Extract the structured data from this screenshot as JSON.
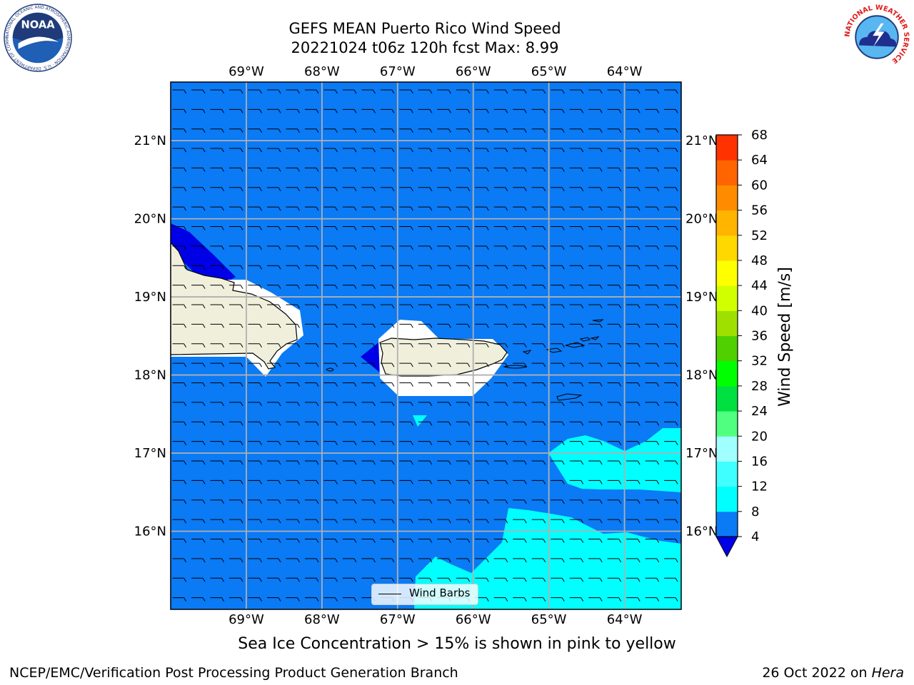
{
  "header": {
    "title_line1": "GEFS MEAN Puerto Rico Wind Speed",
    "title_line2": "20221024 t06z 120h fcst   Max: 8.99"
  },
  "logos": {
    "left": {
      "name": "noaa-logo",
      "text": "NOAA",
      "ring_text": "NATIONAL OCEANIC AND ATMOSPHERIC ADMINISTRATION · U.S. DEPARTMENT OF COMMERCE"
    },
    "right": {
      "name": "nws-logo",
      "ring_text": "NATIONAL WEATHER SERVICE"
    }
  },
  "map": {
    "lon_range": [
      -70.0,
      -63.25
    ],
    "lat_range": [
      15.0,
      21.75
    ],
    "lon_ticks": [
      {
        "value": -69,
        "label": "69°W"
      },
      {
        "value": -68,
        "label": "68°W"
      },
      {
        "value": -67,
        "label": "67°W"
      },
      {
        "value": -66,
        "label": "66°W"
      },
      {
        "value": -65,
        "label": "65°W"
      },
      {
        "value": -64,
        "label": "64°W"
      }
    ],
    "lat_ticks": [
      {
        "value": 21,
        "label": "21°N"
      },
      {
        "value": 20,
        "label": "20°N"
      },
      {
        "value": 19,
        "label": "19°N"
      },
      {
        "value": 18,
        "label": "18°N"
      },
      {
        "value": 17,
        "label": "17°N"
      },
      {
        "value": 16,
        "label": "16°N"
      }
    ],
    "grid": true,
    "colors": {
      "ocean_4_8": "#0a7af5",
      "below_4": "#0000e6",
      "band_8_12": "#00ffff",
      "land": "#efefdc",
      "grid": "#b0b0b0"
    },
    "barb_lon_step": 0.25,
    "barb_lat_step": 0.25,
    "barb_direction_deg": 90,
    "legend_label": "Wind Barbs"
  },
  "colorbar": {
    "label": "Wind Speed [m/s]",
    "levels": [
      4,
      8,
      12,
      16,
      20,
      24,
      28,
      32,
      36,
      40,
      44,
      48,
      52,
      56,
      60,
      64,
      68
    ],
    "tick_labels": [
      "4",
      "8",
      "12",
      "16",
      "20",
      "24",
      "28",
      "32",
      "36",
      "40",
      "44",
      "48",
      "52",
      "56",
      "60",
      "64",
      "68"
    ],
    "colors": [
      "#0a7af5",
      "#00ffff",
      "#40ffff",
      "#a0ffff",
      "#50ff80",
      "#00e040",
      "#00ff00",
      "#50d000",
      "#a0e000",
      "#d2ff00",
      "#ffff00",
      "#ffd800",
      "#ffb400",
      "#ff8c00",
      "#ff6400",
      "#ff3200"
    ],
    "under_color": "#0000e6",
    "top_color": "#ff0000"
  },
  "footer": {
    "note": "Sea Ice Concentration > 15% is shown in pink to yellow",
    "left": "NCEP/EMC/Verification Post Processing Product Generation Branch",
    "right_prefix": "26 Oct 2022 on ",
    "right_host": "Hera"
  }
}
